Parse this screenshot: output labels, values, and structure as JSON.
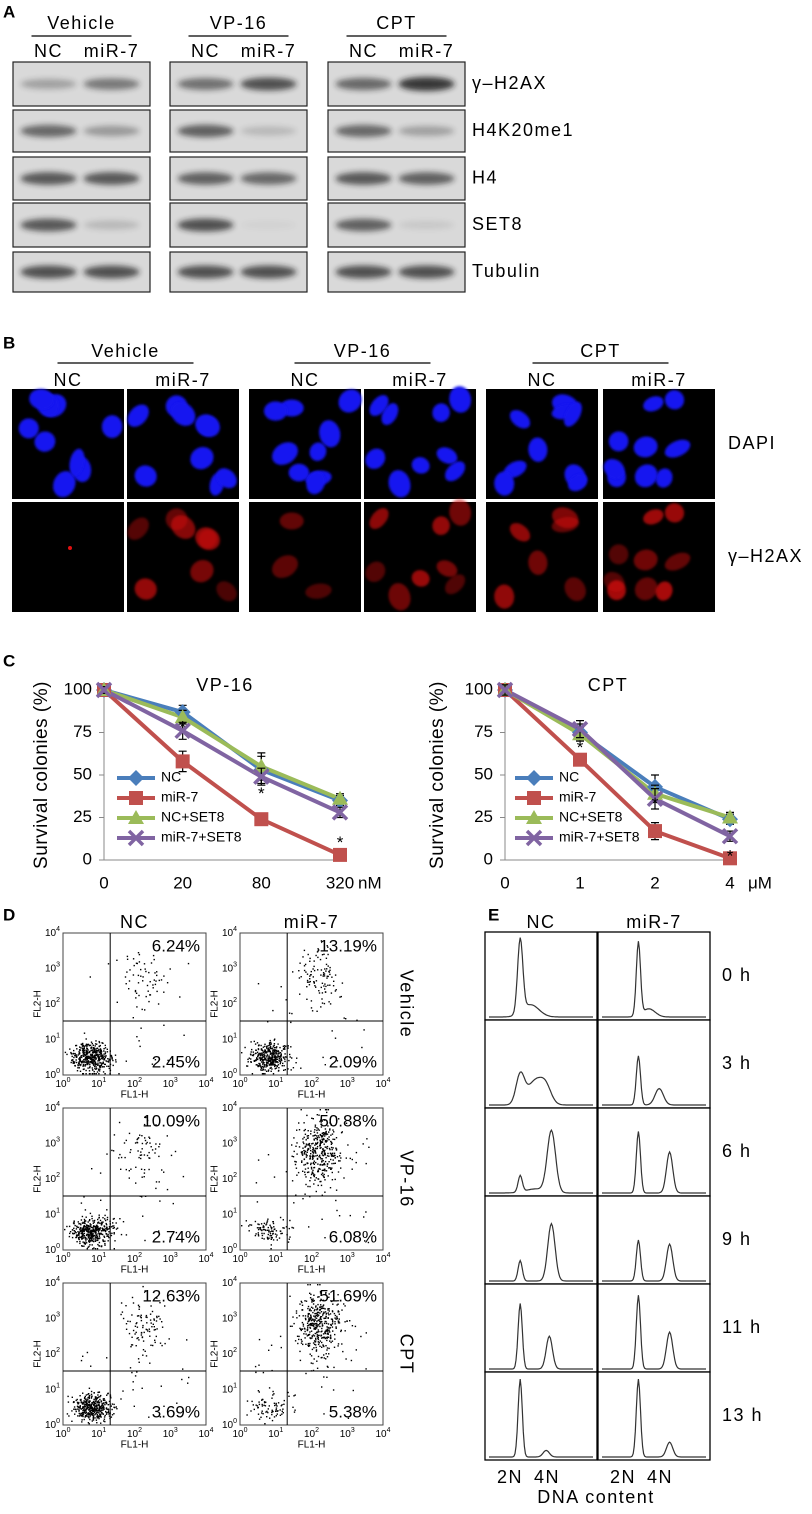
{
  "panel_a": {
    "label": "A",
    "groups": [
      "Vehicle",
      "VP-16",
      "CPT"
    ],
    "lanes": [
      "NC",
      "miR-7"
    ],
    "rows": [
      "γ–H2AX",
      "H4K20me1",
      "H4",
      "SET8",
      "Tubulin"
    ]
  },
  "panel_b": {
    "label": "B",
    "groups": [
      "Vehicle",
      "VP-16",
      "CPT"
    ],
    "lanes": [
      "NC",
      "miR-7"
    ],
    "rows": [
      "DAPI",
      "γ–H2AX"
    ]
  },
  "panel_c": {
    "label": "C"
  },
  "chart_data": [
    {
      "type": "line",
      "title": "VP-16",
      "ylabel": "Survival colonies (%)",
      "xlabel": "nM",
      "categories": [
        "0",
        "20",
        "80",
        "320"
      ],
      "ylim": [
        0,
        100
      ],
      "yticks": [
        0,
        25,
        50,
        75,
        100
      ],
      "legend": "lower left",
      "series": [
        {
          "name": "NC",
          "color": "#4a7ebb",
          "marker": "diamond",
          "values": [
            100,
            87,
            53,
            35
          ],
          "errors": [
            2,
            4,
            8,
            3
          ]
        },
        {
          "name": "miR-7",
          "color": "#c0504d",
          "marker": "square",
          "values": [
            100,
            58,
            24,
            3
          ],
          "errors": [
            2,
            6,
            3,
            2
          ]
        },
        {
          "name": "NC+SET8",
          "color": "#9bbb59",
          "marker": "triangle",
          "values": [
            100,
            84,
            55,
            36
          ],
          "errors": [
            2,
            4,
            8,
            3
          ]
        },
        {
          "name": "miR-7+SET8",
          "color": "#8064a2",
          "marker": "x",
          "values": [
            100,
            76,
            49,
            28
          ],
          "errors": [
            2,
            5,
            5,
            3
          ]
        }
      ],
      "annotations": [
        {
          "text": "*",
          "category": "20",
          "y": 80
        },
        {
          "text": "*",
          "category": "80",
          "y": 41
        },
        {
          "text": "*",
          "category": "320",
          "y": 12
        }
      ]
    },
    {
      "type": "line",
      "title": "CPT",
      "ylabel": "Survival colonies (%)",
      "xlabel": "μM",
      "categories": [
        "0",
        "1",
        "2",
        "4"
      ],
      "ylim": [
        0,
        100
      ],
      "yticks": [
        0,
        25,
        50,
        75,
        100
      ],
      "legend": "lower left",
      "series": [
        {
          "name": "NC",
          "color": "#4a7ebb",
          "marker": "diamond",
          "values": [
            100,
            75,
            43,
            24
          ],
          "errors": [
            3,
            5,
            7,
            3
          ]
        },
        {
          "name": "miR-7",
          "color": "#c0504d",
          "marker": "square",
          "values": [
            100,
            59,
            17,
            1
          ],
          "errors": [
            3,
            3,
            5,
            2
          ]
        },
        {
          "name": "NC+SET8",
          "color": "#9bbb59",
          "marker": "triangle",
          "values": [
            100,
            74,
            39,
            25
          ],
          "errors": [
            3,
            4,
            5,
            3
          ]
        },
        {
          "name": "miR-7+SET8",
          "color": "#8064a2",
          "marker": "x",
          "values": [
            100,
            77,
            36,
            14
          ],
          "errors": [
            3,
            5,
            6,
            3
          ]
        }
      ],
      "annotations": [
        {
          "text": "*",
          "category": "1",
          "y": 68
        },
        {
          "text": "*",
          "category": "2",
          "y": 35
        },
        {
          "text": "*",
          "category": "4",
          "y": 4
        }
      ]
    }
  ],
  "panel_d": {
    "label": "D",
    "columns": [
      "NC",
      "miR-7"
    ],
    "rows": [
      "Vehicle",
      "VP-16",
      "CPT"
    ],
    "xlabel": "FL1-H",
    "ylabel": "FL2-H",
    "tick_base": "10",
    "tick_exponents": [
      "0",
      "1",
      "2",
      "3",
      "4"
    ],
    "upper": [
      [
        "6.24%",
        "13.19%"
      ],
      [
        "10.09%",
        "50.88%"
      ],
      [
        "12.63%",
        "51.69%"
      ]
    ],
    "lower": [
      [
        "2.45%",
        "2.09%"
      ],
      [
        "2.74%",
        "6.08%"
      ],
      [
        "3.69%",
        "5.38%"
      ]
    ]
  },
  "panel_e": {
    "label": "E",
    "columns": [
      "NC",
      "miR-7"
    ],
    "times": [
      "0 h",
      "3 h",
      "6 h",
      "9 h",
      "11 h",
      "13 h"
    ],
    "xticks": [
      "2N",
      "4N"
    ],
    "xlabel": "DNA content"
  }
}
